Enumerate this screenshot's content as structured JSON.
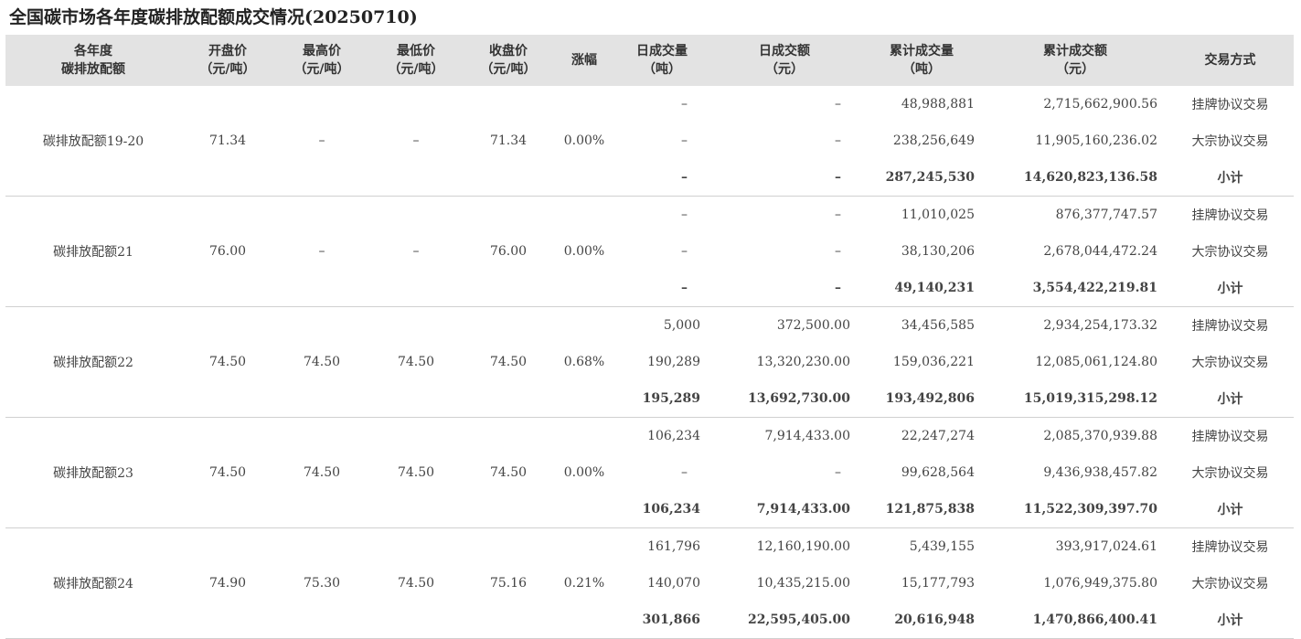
{
  "title": "全国碳市场各年度碳排放配额成交情况(20250710)",
  "columns": [
    {
      "l1": "各年度",
      "l2": "碳排放配额"
    },
    {
      "l1": "开盘价",
      "l2": "（元/吨）"
    },
    {
      "l1": "最高价",
      "l2": "（元/吨）"
    },
    {
      "l1": "最低价",
      "l2": "（元/吨）"
    },
    {
      "l1": "收盘价",
      "l2": "（元/吨）"
    },
    {
      "l1": "涨幅",
      "l2": ""
    },
    {
      "l1": "日成交量",
      "l2": "（吨）"
    },
    {
      "l1": "日成交额",
      "l2": "（元）"
    },
    {
      "l1": "累计成交量",
      "l2": "（吨）"
    },
    {
      "l1": "累计成交额",
      "l2": "（元）"
    },
    {
      "l1": "交易方式",
      "l2": ""
    }
  ],
  "groups": [
    {
      "name": "碳排放配额19-20",
      "open": "71.34",
      "high": "–",
      "low": "–",
      "close": "71.34",
      "change": "0.00%",
      "rows": [
        {
          "dvol": "–",
          "damt": "–",
          "cvol": "48,988,881",
          "camt": "2,715,662,900.56",
          "method": "挂牌协议交易"
        },
        {
          "dvol": "–",
          "damt": "–",
          "cvol": "238,256,649",
          "camt": "11,905,160,236.02",
          "method": "大宗协议交易"
        },
        {
          "dvol": "–",
          "damt": "–",
          "cvol": "287,245,530",
          "camt": "14,620,823,136.58",
          "method": "小计"
        }
      ]
    },
    {
      "name": "碳排放配额21",
      "open": "76.00",
      "high": "–",
      "low": "–",
      "close": "76.00",
      "change": "0.00%",
      "rows": [
        {
          "dvol": "–",
          "damt": "–",
          "cvol": "11,010,025",
          "camt": "876,377,747.57",
          "method": "挂牌协议交易"
        },
        {
          "dvol": "–",
          "damt": "–",
          "cvol": "38,130,206",
          "camt": "2,678,044,472.24",
          "method": "大宗协议交易"
        },
        {
          "dvol": "–",
          "damt": "–",
          "cvol": "49,140,231",
          "camt": "3,554,422,219.81",
          "method": "小计"
        }
      ]
    },
    {
      "name": "碳排放配额22",
      "open": "74.50",
      "high": "74.50",
      "low": "74.50",
      "close": "74.50",
      "change": "0.68%",
      "rows": [
        {
          "dvol": "5,000",
          "damt": "372,500.00",
          "cvol": "34,456,585",
          "camt": "2,934,254,173.32",
          "method": "挂牌协议交易"
        },
        {
          "dvol": "190,289",
          "damt": "13,320,230.00",
          "cvol": "159,036,221",
          "camt": "12,085,061,124.80",
          "method": "大宗协议交易"
        },
        {
          "dvol": "195,289",
          "damt": "13,692,730.00",
          "cvol": "193,492,806",
          "camt": "15,019,315,298.12",
          "method": "小计"
        }
      ]
    },
    {
      "name": "碳排放配额23",
      "open": "74.50",
      "high": "74.50",
      "low": "74.50",
      "close": "74.50",
      "change": "0.00%",
      "rows": [
        {
          "dvol": "106,234",
          "damt": "7,914,433.00",
          "cvol": "22,247,274",
          "camt": "2,085,370,939.88",
          "method": "挂牌协议交易"
        },
        {
          "dvol": "–",
          "damt": "–",
          "cvol": "99,628,564",
          "camt": "9,436,938,457.82",
          "method": "大宗协议交易"
        },
        {
          "dvol": "106,234",
          "damt": "7,914,433.00",
          "cvol": "121,875,838",
          "camt": "11,522,309,397.70",
          "method": "小计"
        }
      ]
    },
    {
      "name": "碳排放配额24",
      "open": "74.90",
      "high": "75.30",
      "low": "74.50",
      "close": "75.16",
      "change": "0.21%",
      "rows": [
        {
          "dvol": "161,796",
          "damt": "12,160,190.00",
          "cvol": "5,439,155",
          "camt": "393,917,024.61",
          "method": "挂牌协议交易"
        },
        {
          "dvol": "140,070",
          "damt": "10,435,215.00",
          "cvol": "15,177,793",
          "camt": "1,076,949,375.80",
          "method": "大宗协议交易"
        },
        {
          "dvol": "301,866",
          "damt": "22,595,405.00",
          "cvol": "20,616,948",
          "camt": "1,470,866,400.41",
          "method": "小计"
        }
      ]
    }
  ]
}
